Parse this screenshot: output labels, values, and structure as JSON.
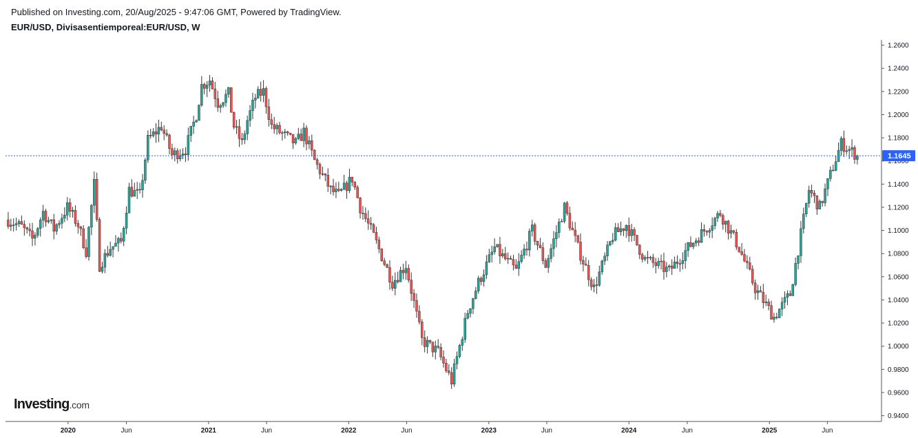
{
  "header": {
    "published_text": "Published on Investing.com, 20/Aug/2025 - 9:47:06 GMT, Powered by TradingView.",
    "symbol_text": "EUR/USD, Divisasentiemporeal:EUR/USD, W"
  },
  "logo": {
    "brand": "Investing",
    "domain": ".com"
  },
  "chart_data": {
    "type": "candlestick",
    "ylim": [
      0.935,
      1.2645
    ],
    "last_price": 1.1645,
    "last_price_label": "1.1645",
    "colors": {
      "up": "#26a69a",
      "down": "#ef5350",
      "price_line": "#2962ff",
      "badge": "#2962ff"
    },
    "y_ticks": [
      {
        "value": 1.26,
        "label": "1.2600"
      },
      {
        "value": 1.24,
        "label": "1.2400"
      },
      {
        "value": 1.22,
        "label": "1.2200"
      },
      {
        "value": 1.2,
        "label": "1.2000"
      },
      {
        "value": 1.18,
        "label": "1.1800"
      },
      {
        "value": 1.16,
        "label": "1.1600"
      },
      {
        "value": 1.14,
        "label": "1.1400"
      },
      {
        "value": 1.12,
        "label": "1.1200"
      },
      {
        "value": 1.1,
        "label": "1.1000"
      },
      {
        "value": 1.08,
        "label": "1.0800"
      },
      {
        "value": 1.06,
        "label": "1.0600"
      },
      {
        "value": 1.04,
        "label": "1.0400"
      },
      {
        "value": 1.02,
        "label": "1.0200"
      },
      {
        "value": 1.0,
        "label": "1.0000"
      },
      {
        "value": 0.98,
        "label": "0.9800"
      },
      {
        "value": 0.96,
        "label": "0.9600"
      },
      {
        "value": 0.94,
        "label": "0.9400"
      }
    ],
    "x_ticks": [
      {
        "date": "2020-01-01",
        "label": "2020",
        "bold": true
      },
      {
        "date": "2020-06-01",
        "label": "Jun",
        "bold": false
      },
      {
        "date": "2021-01-01",
        "label": "2021",
        "bold": true
      },
      {
        "date": "2021-06-01",
        "label": "Jun",
        "bold": false
      },
      {
        "date": "2022-01-01",
        "label": "2022",
        "bold": true
      },
      {
        "date": "2022-06-01",
        "label": "Jun",
        "bold": false
      },
      {
        "date": "2023-01-01",
        "label": "2023",
        "bold": true
      },
      {
        "date": "2023-06-01",
        "label": "Jun",
        "bold": false
      },
      {
        "date": "2024-01-01",
        "label": "2024",
        "bold": true
      },
      {
        "date": "2024-06-01",
        "label": "Jun",
        "bold": false
      },
      {
        "date": "2025-01-01",
        "label": "2025",
        "bold": true
      },
      {
        "date": "2025-06-01",
        "label": "Jun",
        "bold": false
      }
    ],
    "x_range": [
      "2019-07-22",
      "2025-10-20"
    ],
    "series": [
      {
        "date": "2019-07-29",
        "close": 1.109
      },
      {
        "date": "2019-09-02",
        "close": 1.103
      },
      {
        "date": "2019-10-01",
        "close": 1.092
      },
      {
        "date": "2019-10-28",
        "close": 1.116
      },
      {
        "date": "2019-11-25",
        "close": 1.101
      },
      {
        "date": "2019-12-30",
        "close": 1.12
      },
      {
        "date": "2020-01-27",
        "close": 1.105
      },
      {
        "date": "2020-02-17",
        "close": 1.082
      },
      {
        "date": "2020-03-09",
        "close": 1.14
      },
      {
        "date": "2020-03-23",
        "close": 1.07
      },
      {
        "date": "2020-04-20",
        "close": 1.085
      },
      {
        "date": "2020-05-18",
        "close": 1.09
      },
      {
        "date": "2020-06-08",
        "close": 1.135
      },
      {
        "date": "2020-07-06",
        "close": 1.13
      },
      {
        "date": "2020-07-27",
        "close": 1.178
      },
      {
        "date": "2020-08-31",
        "close": 1.19
      },
      {
        "date": "2020-09-28",
        "close": 1.165
      },
      {
        "date": "2020-11-02",
        "close": 1.17
      },
      {
        "date": "2020-11-30",
        "close": 1.2
      },
      {
        "date": "2020-12-14",
        "close": 1.225
      },
      {
        "date": "2021-01-04",
        "close": 1.23
      },
      {
        "date": "2021-01-25",
        "close": 1.21
      },
      {
        "date": "2021-02-22",
        "close": 1.218
      },
      {
        "date": "2021-03-08",
        "close": 1.19
      },
      {
        "date": "2021-03-29",
        "close": 1.175
      },
      {
        "date": "2021-04-12",
        "close": 1.195
      },
      {
        "date": "2021-05-03",
        "close": 1.215
      },
      {
        "date": "2021-05-24",
        "close": 1.22
      },
      {
        "date": "2021-06-14",
        "close": 1.19
      },
      {
        "date": "2021-07-05",
        "close": 1.185
      },
      {
        "date": "2021-08-16",
        "close": 1.175
      },
      {
        "date": "2021-09-06",
        "close": 1.185
      },
      {
        "date": "2021-10-04",
        "close": 1.16
      },
      {
        "date": "2021-11-15",
        "close": 1.135
      },
      {
        "date": "2021-12-06",
        "close": 1.13
      },
      {
        "date": "2022-01-10",
        "close": 1.145
      },
      {
        "date": "2022-01-31",
        "close": 1.12
      },
      {
        "date": "2022-03-07",
        "close": 1.095
      },
      {
        "date": "2022-04-25",
        "close": 1.055
      },
      {
        "date": "2022-05-30",
        "close": 1.07
      },
      {
        "date": "2022-07-11",
        "close": 1.005
      },
      {
        "date": "2022-08-22",
        "close": 0.995
      },
      {
        "date": "2022-09-26",
        "close": 0.97
      },
      {
        "date": "2022-11-07",
        "close": 1.03
      },
      {
        "date": "2022-12-05",
        "close": 1.055
      },
      {
        "date": "2023-01-16",
        "close": 1.085
      },
      {
        "date": "2023-03-13",
        "close": 1.065
      },
      {
        "date": "2023-04-24",
        "close": 1.1
      },
      {
        "date": "2023-05-29",
        "close": 1.07
      },
      {
        "date": "2023-07-17",
        "close": 1.12
      },
      {
        "date": "2023-08-21",
        "close": 1.085
      },
      {
        "date": "2023-10-02",
        "close": 1.05
      },
      {
        "date": "2023-11-20",
        "close": 1.095
      },
      {
        "date": "2023-12-25",
        "close": 1.105
      },
      {
        "date": "2024-02-12",
        "close": 1.075
      },
      {
        "date": "2024-04-15",
        "close": 1.065
      },
      {
        "date": "2024-06-03",
        "close": 1.085
      },
      {
        "date": "2024-08-26",
        "close": 1.115
      },
      {
        "date": "2024-10-14",
        "close": 1.085
      },
      {
        "date": "2024-11-25",
        "close": 1.05
      },
      {
        "date": "2025-01-13",
        "close": 1.025
      },
      {
        "date": "2025-02-24",
        "close": 1.045
      },
      {
        "date": "2025-04-14",
        "close": 1.135
      },
      {
        "date": "2025-05-12",
        "close": 1.12
      },
      {
        "date": "2025-06-16",
        "close": 1.155
      },
      {
        "date": "2025-07-07",
        "close": 1.175
      },
      {
        "date": "2025-08-18",
        "close": 1.1645
      }
    ]
  }
}
